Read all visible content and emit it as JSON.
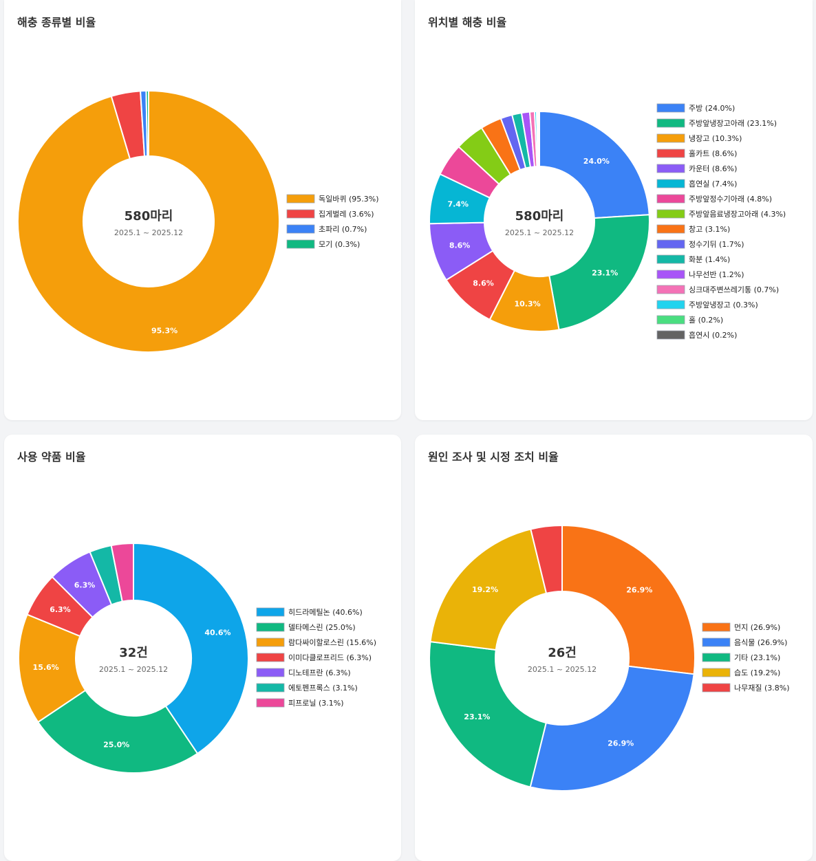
{
  "cards": [
    {
      "title": "해충 종류별 비율",
      "chart_data": {
        "type": "pie",
        "center_total": "580마리",
        "center_period": "2025.1 ~ 2025.12",
        "slices": [
          {
            "label": "독일바퀴 (95.3%)",
            "value": 95.3,
            "pct_label": "95.3%",
            "color": "#f59e0b"
          },
          {
            "label": "집게벌레 (3.6%)",
            "value": 3.6,
            "pct_label": "",
            "color": "#ef4444"
          },
          {
            "label": "초파리 (0.7%)",
            "value": 0.7,
            "pct_label": "",
            "color": "#3b82f6"
          },
          {
            "label": "모기 (0.3%)",
            "value": 0.3,
            "pct_label": "",
            "color": "#10b981"
          }
        ]
      }
    },
    {
      "title": "위치별 해충 비율",
      "chart_data": {
        "type": "pie",
        "center_total": "580마리",
        "center_period": "2025.1 ~ 2025.12",
        "slices": [
          {
            "label": "주방 (24.0%)",
            "value": 24.0,
            "pct_label": "24.0%",
            "color": "#3b82f6"
          },
          {
            "label": "주방앞냉장고아래 (23.1%)",
            "value": 23.1,
            "pct_label": "23.1%",
            "color": "#10b981"
          },
          {
            "label": "냉장고 (10.3%)",
            "value": 10.3,
            "pct_label": "10.3%",
            "color": "#f59e0b"
          },
          {
            "label": "홀카트 (8.6%)",
            "value": 8.6,
            "pct_label": "8.6%",
            "color": "#ef4444"
          },
          {
            "label": "카운터 (8.6%)",
            "value": 8.6,
            "pct_label": "8.6%",
            "color": "#8b5cf6"
          },
          {
            "label": "흡연실 (7.4%)",
            "value": 7.4,
            "pct_label": "7.4%",
            "color": "#06b6d4"
          },
          {
            "label": "주방앞정수기아래 (4.8%)",
            "value": 4.8,
            "pct_label": "",
            "color": "#ec4899"
          },
          {
            "label": "주방앞음료냉장고아래 (4.3%)",
            "value": 4.3,
            "pct_label": "",
            "color": "#84cc16"
          },
          {
            "label": "창고 (3.1%)",
            "value": 3.1,
            "pct_label": "",
            "color": "#f97316"
          },
          {
            "label": "정수기뒤 (1.7%)",
            "value": 1.7,
            "pct_label": "",
            "color": "#6366f1"
          },
          {
            "label": "화분 (1.4%)",
            "value": 1.4,
            "pct_label": "",
            "color": "#14b8a6"
          },
          {
            "label": "나무선반 (1.2%)",
            "value": 1.2,
            "pct_label": "",
            "color": "#a855f7"
          },
          {
            "label": "싱크대주변쓰레기통 (0.7%)",
            "value": 0.7,
            "pct_label": "",
            "color": "#f472b6"
          },
          {
            "label": "주방앞냉장고 (0.3%)",
            "value": 0.3,
            "pct_label": "",
            "color": "#22d3ee"
          },
          {
            "label": "홀 (0.2%)",
            "value": 0.2,
            "pct_label": "",
            "color": "#4ade80"
          },
          {
            "label": "흡연시 (0.2%)",
            "value": 0.2,
            "pct_label": "",
            "color": "#636363"
          }
        ]
      }
    },
    {
      "title": "사용 약품 비율",
      "chart_data": {
        "type": "pie",
        "center_total": "32건",
        "center_period": "2025.1 ~ 2025.12",
        "slices": [
          {
            "label": "히드라메틸논 (40.6%)",
            "value": 40.6,
            "pct_label": "40.6%",
            "color": "#0ea5e9"
          },
          {
            "label": "델타메스린 (25.0%)",
            "value": 25.0,
            "pct_label": "25.0%",
            "color": "#10b981"
          },
          {
            "label": "람다싸이할로스린 (15.6%)",
            "value": 15.6,
            "pct_label": "15.6%",
            "color": "#f59e0b"
          },
          {
            "label": "이미다클로프리드 (6.3%)",
            "value": 6.3,
            "pct_label": "6.3%",
            "color": "#ef4444"
          },
          {
            "label": "디노테프란 (6.3%)",
            "value": 6.3,
            "pct_label": "6.3%",
            "color": "#8b5cf6"
          },
          {
            "label": "에토펜프록스 (3.1%)",
            "value": 3.1,
            "pct_label": "",
            "color": "#14b8a6"
          },
          {
            "label": "피프로닐 (3.1%)",
            "value": 3.1,
            "pct_label": "",
            "color": "#ec4899"
          }
        ]
      }
    },
    {
      "title": "원인 조사 및 시정 조치 비율",
      "chart_data": {
        "type": "pie",
        "center_total": "26건",
        "center_period": "2025.1 ~ 2025.12",
        "slices": [
          {
            "label": "먼지 (26.9%)",
            "value": 26.9,
            "pct_label": "26.9%",
            "color": "#f97316"
          },
          {
            "label": "음식물 (26.9%)",
            "value": 26.9,
            "pct_label": "26.9%",
            "color": "#3b82f6"
          },
          {
            "label": "기타 (23.1%)",
            "value": 23.1,
            "pct_label": "23.1%",
            "color": "#10b981"
          },
          {
            "label": "습도 (19.2%)",
            "value": 19.2,
            "pct_label": "19.2%",
            "color": "#eab308"
          },
          {
            "label": "나무재질 (3.8%)",
            "value": 3.8,
            "pct_label": "",
            "color": "#ef4444"
          }
        ]
      }
    }
  ]
}
